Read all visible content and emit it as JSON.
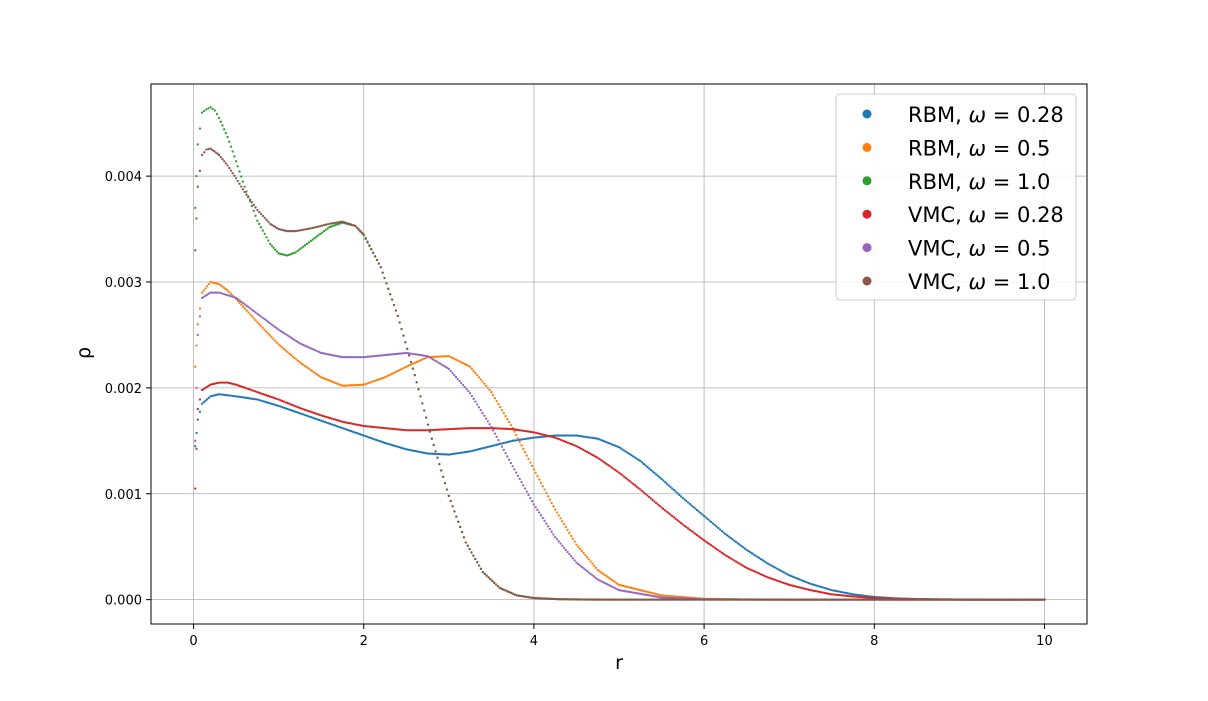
{
  "chart_data": {
    "type": "scatter",
    "xlabel": "r",
    "ylabel": "ρ",
    "xlim": [
      -0.5,
      10.5
    ],
    "ylim": [
      -0.00023,
      0.00487
    ],
    "xticks": [
      0,
      2,
      4,
      6,
      8,
      10
    ],
    "xtick_labels": [
      "0",
      "2",
      "4",
      "6",
      "8",
      "10"
    ],
    "yticks": [
      0.0,
      0.001,
      0.002,
      0.003,
      0.004
    ],
    "ytick_labels": [
      "0.000",
      "0.001",
      "0.002",
      "0.003",
      "0.004"
    ],
    "grid": true,
    "legend_position": "upper right",
    "series": [
      {
        "name": "RBM, ω = 0.28",
        "label_main": "RBM, ",
        "label_omega": "ω",
        "label_value": " = 0.28",
        "color": "#1f77b4",
        "x": [
          0.02,
          0.05,
          0.1,
          0.2,
          0.3,
          0.5,
          0.75,
          1.0,
          1.25,
          1.5,
          1.75,
          2.0,
          2.25,
          2.5,
          2.75,
          3.0,
          3.25,
          3.5,
          3.75,
          4.0,
          4.25,
          4.5,
          4.75,
          5.0,
          5.25,
          5.5,
          5.75,
          6.0,
          6.25,
          6.5,
          6.75,
          7.0,
          7.25,
          7.5,
          7.75,
          8.0,
          8.25,
          8.5,
          8.75,
          9.0,
          9.5,
          10.0
        ],
        "y": [
          0.00145,
          0.0017,
          0.00185,
          0.00192,
          0.00194,
          0.00192,
          0.00189,
          0.00183,
          0.00176,
          0.00169,
          0.00162,
          0.00155,
          0.00148,
          0.00142,
          0.00138,
          0.00137,
          0.0014,
          0.00145,
          0.0015,
          0.00153,
          0.00155,
          0.00155,
          0.00152,
          0.00144,
          0.00131,
          0.00114,
          0.00096,
          0.00079,
          0.00062,
          0.00047,
          0.00034,
          0.00023,
          0.00015,
          9e-05,
          5e-05,
          2.5e-05,
          1.2e-05,
          6e-06,
          3e-06,
          1e-06,
          3e-07,
          0.0
        ]
      },
      {
        "name": "RBM, ω = 0.5",
        "label_main": "RBM, ",
        "label_omega": "ω",
        "label_value": " = 0.5",
        "color": "#ff7f0e",
        "x": [
          0.02,
          0.05,
          0.1,
          0.2,
          0.3,
          0.4,
          0.5,
          0.75,
          1.0,
          1.25,
          1.5,
          1.75,
          2.0,
          2.25,
          2.5,
          2.75,
          3.0,
          3.25,
          3.5,
          3.75,
          4.0,
          4.25,
          4.5,
          4.75,
          5.0,
          5.5,
          6.0,
          6.5,
          7.0,
          8.0,
          9.0,
          10.0
        ],
        "y": [
          0.0022,
          0.0026,
          0.0029,
          0.003,
          0.00298,
          0.00292,
          0.00284,
          0.00262,
          0.00241,
          0.00224,
          0.0021,
          0.00202,
          0.00203,
          0.0021,
          0.0022,
          0.00229,
          0.0023,
          0.0022,
          0.00196,
          0.00162,
          0.00123,
          0.00085,
          0.00052,
          0.00028,
          0.00014,
          4e-05,
          8e-06,
          2e-06,
          5e-07,
          0.0,
          0.0,
          0.0
        ]
      },
      {
        "name": "RBM, ω = 1.0",
        "label_main": "RBM, ",
        "label_omega": "ω",
        "label_value": " = 1.0",
        "color": "#2ca02c",
        "x": [
          0.02,
          0.05,
          0.1,
          0.15,
          0.2,
          0.25,
          0.3,
          0.4,
          0.5,
          0.6,
          0.75,
          0.9,
          1.0,
          1.1,
          1.2,
          1.4,
          1.6,
          1.75,
          1.9,
          2.0,
          2.2,
          2.4,
          2.6,
          2.8,
          3.0,
          3.2,
          3.4,
          3.6,
          3.8,
          4.0,
          4.3,
          4.6,
          5.0,
          6.0,
          8.0,
          10.0
        ],
        "y": [
          0.0037,
          0.0043,
          0.0046,
          0.00463,
          0.00465,
          0.00462,
          0.00455,
          0.00437,
          0.00414,
          0.0039,
          0.00358,
          0.00336,
          0.00327,
          0.00325,
          0.00328,
          0.0034,
          0.00352,
          0.00356,
          0.00353,
          0.00344,
          0.00314,
          0.00268,
          0.00212,
          0.00152,
          0.00098,
          0.00054,
          0.00026,
          0.00011,
          4e-05,
          1.5e-05,
          4e-06,
          1e-06,
          0.0,
          0.0,
          0.0,
          0.0
        ]
      },
      {
        "name": "VMC, ω = 0.28",
        "label_main": "VMC, ",
        "label_omega": "ω",
        "label_value": " = 0.28",
        "color": "#d62728",
        "x": [
          0.02,
          0.05,
          0.1,
          0.2,
          0.3,
          0.4,
          0.5,
          0.75,
          1.0,
          1.25,
          1.5,
          1.75,
          2.0,
          2.25,
          2.5,
          2.75,
          3.0,
          3.25,
          3.5,
          3.75,
          4.0,
          4.25,
          4.5,
          4.75,
          5.0,
          5.25,
          5.5,
          5.75,
          6.0,
          6.25,
          6.5,
          6.75,
          7.0,
          7.25,
          7.5,
          7.75,
          8.0,
          8.5,
          9.0,
          9.5,
          10.0
        ],
        "y": [
          0.00105,
          0.0018,
          0.00198,
          0.00203,
          0.00205,
          0.00205,
          0.00203,
          0.00196,
          0.00189,
          0.00181,
          0.00174,
          0.00168,
          0.00164,
          0.00162,
          0.0016,
          0.0016,
          0.00161,
          0.00162,
          0.00162,
          0.00161,
          0.00158,
          0.00153,
          0.00145,
          0.00134,
          0.0012,
          0.00104,
          0.00087,
          0.00071,
          0.00056,
          0.00042,
          0.0003,
          0.00021,
          0.00014,
          9e-05,
          5e-05,
          3e-05,
          1.5e-05,
          4e-06,
          1e-06,
          2e-07,
          0.0
        ]
      },
      {
        "name": "VMC, ω = 0.5",
        "label_main": "VMC, ",
        "label_omega": "ω",
        "label_value": " = 0.5",
        "color": "#9467bd",
        "x": [
          0.02,
          0.05,
          0.1,
          0.2,
          0.3,
          0.5,
          0.75,
          1.0,
          1.25,
          1.5,
          1.75,
          2.0,
          2.25,
          2.5,
          2.75,
          3.0,
          3.25,
          3.5,
          3.75,
          4.0,
          4.25,
          4.5,
          4.75,
          5.0,
          5.5,
          6.0,
          6.5,
          7.0,
          8.0,
          9.0,
          10.0
        ],
        "y": [
          0.0015,
          0.0025,
          0.00285,
          0.0029,
          0.0029,
          0.00285,
          0.0027,
          0.00255,
          0.00242,
          0.00233,
          0.00229,
          0.00229,
          0.00231,
          0.00233,
          0.0023,
          0.00218,
          0.00195,
          0.00163,
          0.00126,
          0.0009,
          0.00059,
          0.00035,
          0.00019,
          9e-05,
          2e-05,
          4e-06,
          1e-06,
          0.0,
          0.0,
          0.0,
          0.0
        ]
      },
      {
        "name": "VMC, ω = 1.0",
        "label_main": "VMC, ",
        "label_omega": "ω",
        "label_value": " = 1.0",
        "color": "#8c564b",
        "x": [
          0.02,
          0.05,
          0.1,
          0.15,
          0.2,
          0.3,
          0.4,
          0.5,
          0.6,
          0.75,
          0.9,
          1.0,
          1.1,
          1.2,
          1.4,
          1.6,
          1.75,
          1.9,
          2.0,
          2.2,
          2.4,
          2.6,
          2.8,
          3.0,
          3.2,
          3.4,
          3.6,
          3.8,
          4.0,
          4.3,
          4.6,
          5.0,
          6.0,
          8.0,
          10.0
        ],
        "y": [
          0.0033,
          0.0039,
          0.0042,
          0.00425,
          0.00426,
          0.0042,
          0.0041,
          0.00398,
          0.00385,
          0.00368,
          0.00355,
          0.0035,
          0.00348,
          0.00348,
          0.00351,
          0.00355,
          0.00357,
          0.00353,
          0.00345,
          0.00314,
          0.00268,
          0.00212,
          0.00152,
          0.00098,
          0.00054,
          0.00026,
          0.00011,
          4e-05,
          1.5e-05,
          4e-06,
          1e-06,
          0.0,
          0.0,
          0.0,
          0.0
        ]
      }
    ]
  }
}
